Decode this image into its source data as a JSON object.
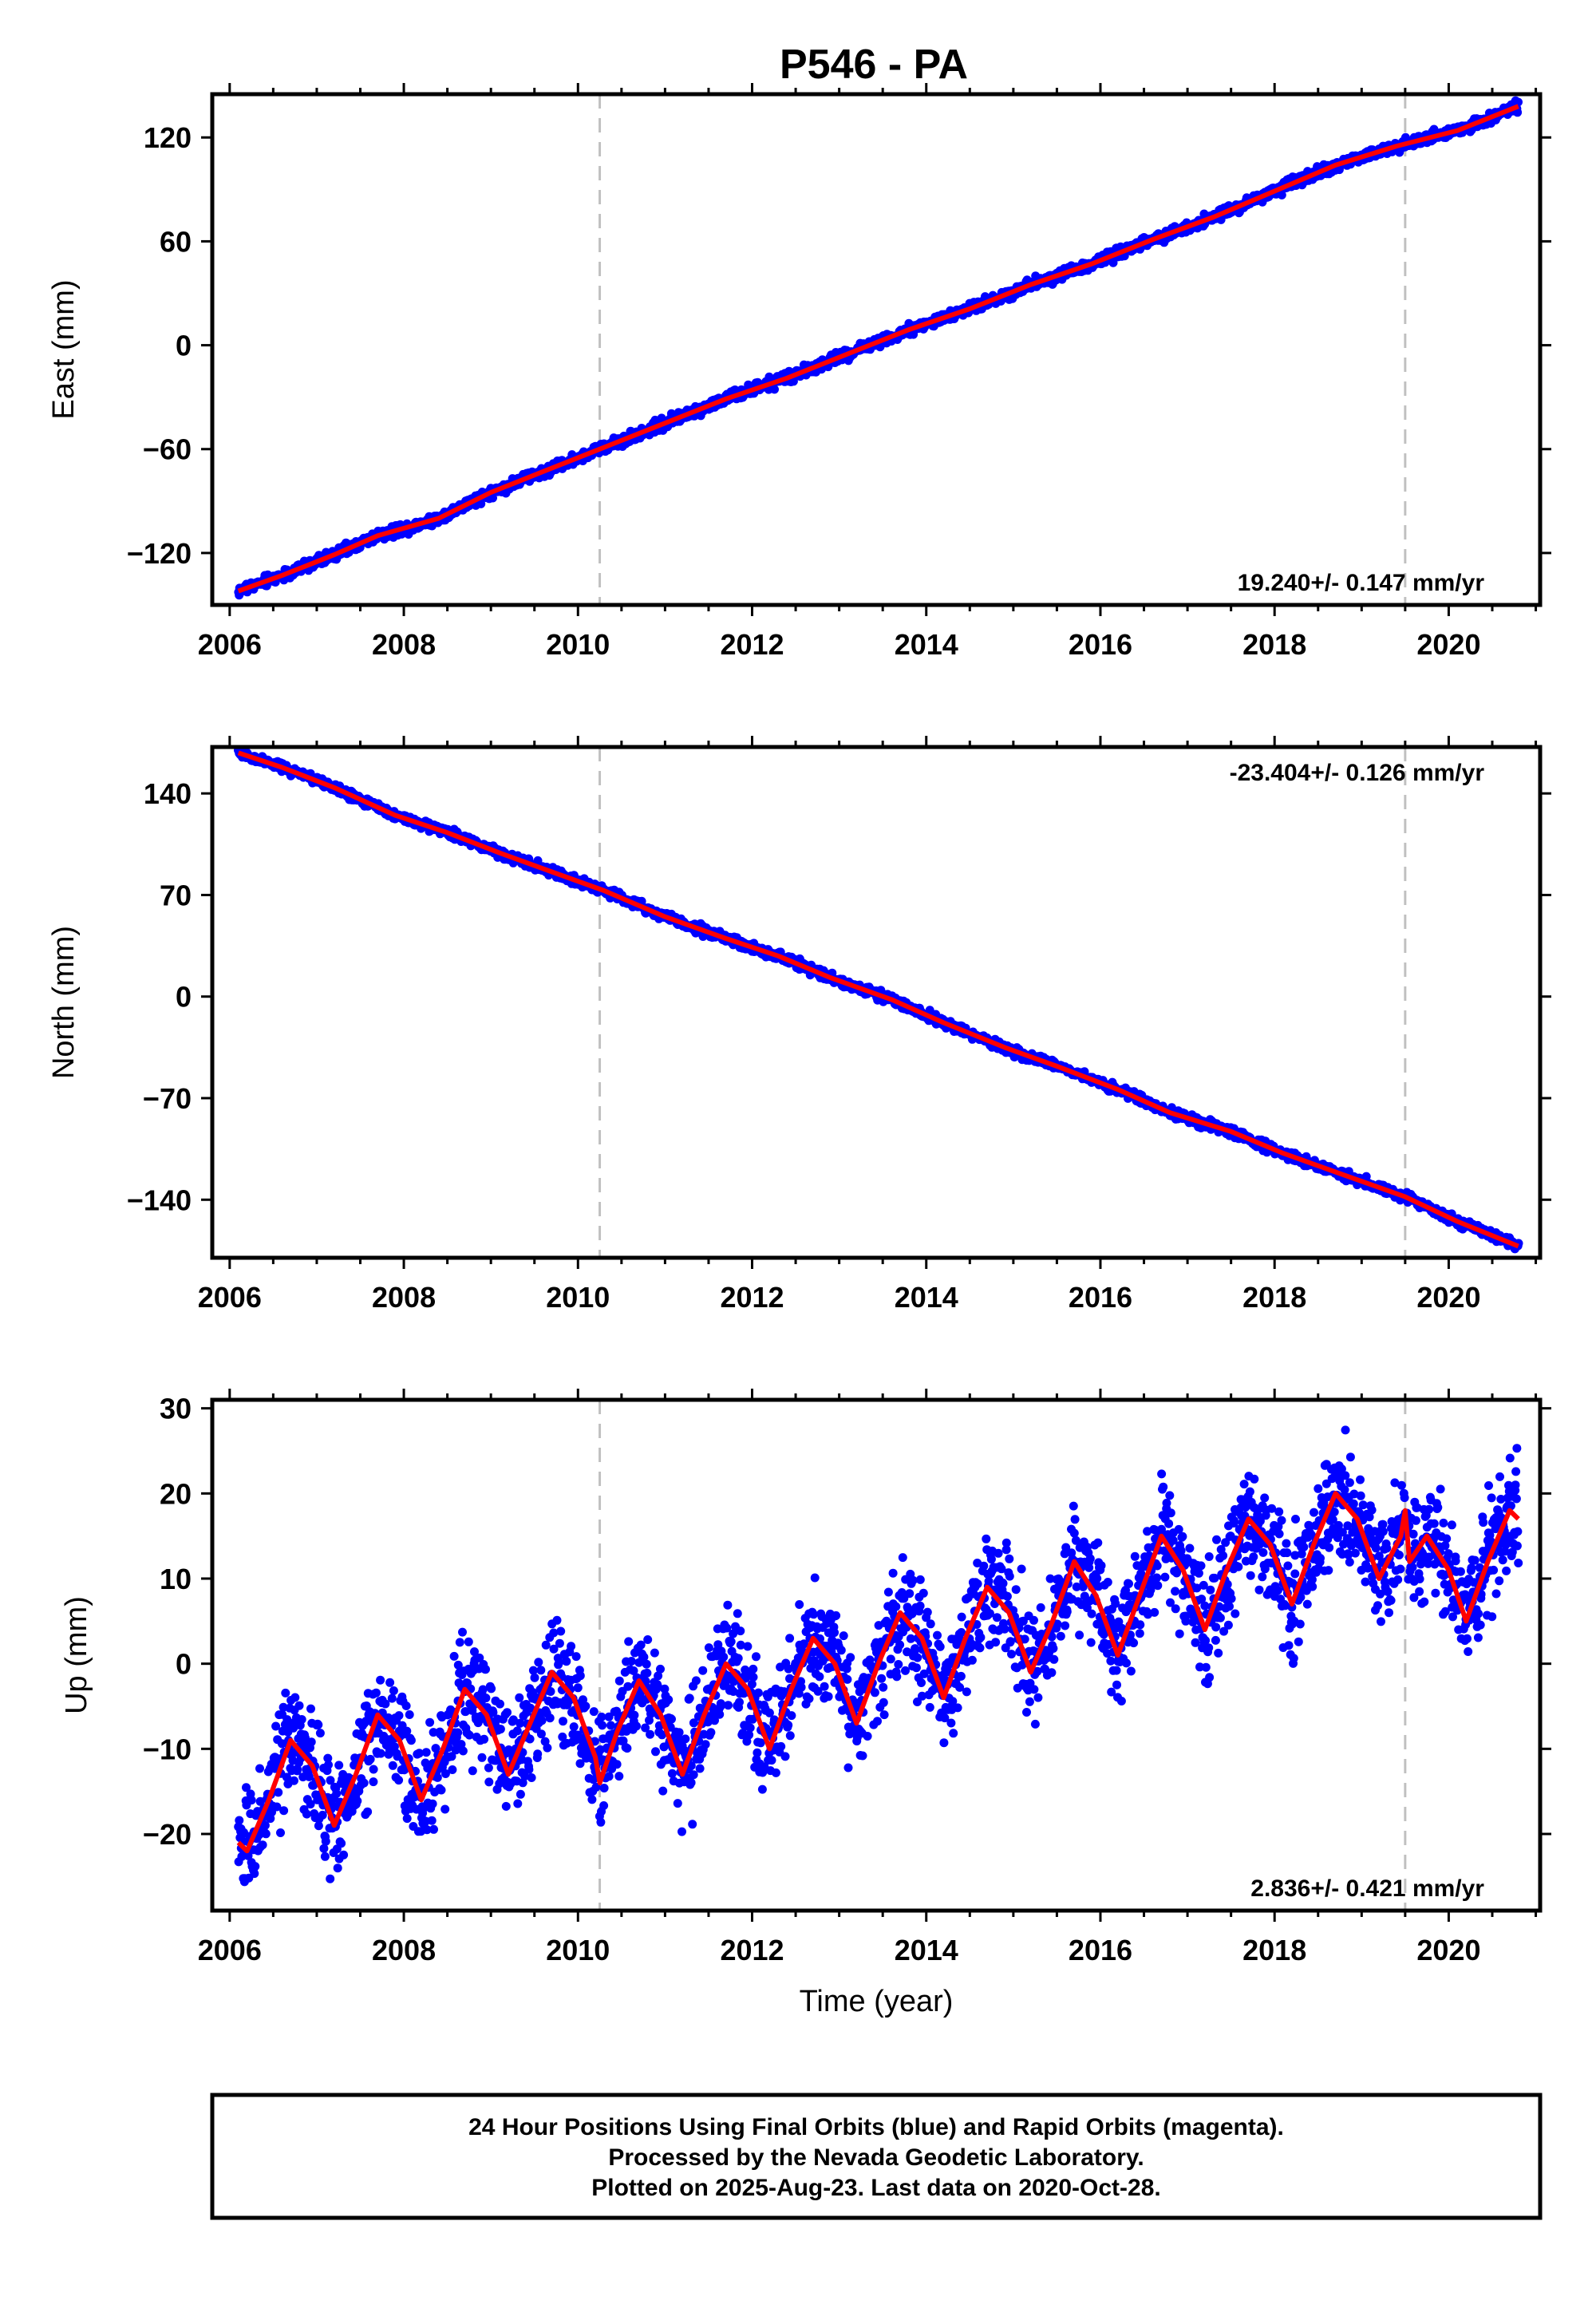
{
  "title": "P546 - PA",
  "chart_data": [
    {
      "type": "scatter",
      "panel": "east",
      "ylabel": "East (mm)",
      "xlabel": "",
      "xlim": [
        2005.8,
        2021.05
      ],
      "ylim": [
        -150,
        145
      ],
      "yticks": [
        -120,
        -60,
        0,
        60,
        120
      ],
      "xticks": [
        2006,
        2008,
        2010,
        2012,
        2014,
        2016,
        2018,
        2020
      ],
      "rate_label": "19.240+/- 0.147 mm/yr",
      "rate_position": "bottom-right",
      "grid": false,
      "steps": [
        2010.25,
        2019.5
      ],
      "series": [
        {
          "color": "#0000ff",
          "values": [
            [
              2006.1,
              -142
            ],
            [
              2006.6,
              -133
            ],
            [
              2007.2,
              -121
            ],
            [
              2007.7,
              -110
            ],
            [
              2008.4,
              -100
            ],
            [
              2009.0,
              -85
            ],
            [
              2009.6,
              -73
            ],
            [
              2010.2,
              -61
            ],
            [
              2011.0,
              -45
            ],
            [
              2011.7,
              -31
            ],
            [
              2012.4,
              -19
            ],
            [
              2013.1,
              -5
            ],
            [
              2013.8,
              9
            ],
            [
              2014.5,
              21
            ],
            [
              2015.2,
              35
            ],
            [
              2015.9,
              47
            ],
            [
              2016.6,
              61
            ],
            [
              2017.3,
              74
            ],
            [
              2018.0,
              89
            ],
            [
              2018.7,
              104
            ],
            [
              2019.4,
              115
            ],
            [
              2020.1,
              124
            ],
            [
              2020.8,
              138
            ]
          ]
        },
        {
          "color": "#ff0000",
          "values": [
            [
              2006.1,
              -142
            ],
            [
              2006.6,
              -133
            ],
            [
              2007.2,
              -121
            ],
            [
              2007.7,
              -110
            ],
            [
              2008.4,
              -100
            ],
            [
              2009.0,
              -85
            ],
            [
              2009.6,
              -73
            ],
            [
              2010.2,
              -61
            ],
            [
              2011.0,
              -45
            ],
            [
              2011.7,
              -31
            ],
            [
              2012.4,
              -19
            ],
            [
              2013.1,
              -5
            ],
            [
              2013.8,
              9
            ],
            [
              2014.5,
              21
            ],
            [
              2015.2,
              35
            ],
            [
              2015.9,
              47
            ],
            [
              2016.6,
              61
            ],
            [
              2017.3,
              74
            ],
            [
              2018.0,
              89
            ],
            [
              2018.7,
              104
            ],
            [
              2019.4,
              115
            ],
            [
              2020.1,
              124
            ],
            [
              2020.8,
              138
            ]
          ]
        }
      ]
    },
    {
      "type": "scatter",
      "panel": "north",
      "ylabel": "North (mm)",
      "xlabel": "",
      "xlim": [
        2005.8,
        2021.05
      ],
      "ylim": [
        -180,
        172
      ],
      "yticks": [
        -140,
        -70,
        0,
        70,
        140
      ],
      "xticks": [
        2006,
        2008,
        2010,
        2012,
        2014,
        2016,
        2018,
        2020
      ],
      "rate_label": "-23.404+/- 0.126 mm/yr",
      "rate_position": "top-right",
      "grid": false,
      "steps": [
        2010.25,
        2019.5
      ],
      "series": [
        {
          "color": "#0000ff",
          "values": [
            [
              2006.1,
              168
            ],
            [
              2006.6,
              158
            ],
            [
              2007.2,
              144
            ],
            [
              2007.9,
              125
            ],
            [
              2008.5,
              113
            ],
            [
              2009.1,
              99
            ],
            [
              2009.7,
              86
            ],
            [
              2010.3,
              73
            ],
            [
              2011.0,
              55
            ],
            [
              2011.7,
              40
            ],
            [
              2012.3,
              28
            ],
            [
              2012.9,
              13
            ],
            [
              2013.6,
              -2
            ],
            [
              2014.2,
              -18
            ],
            [
              2014.9,
              -35
            ],
            [
              2015.5,
              -48
            ],
            [
              2016.2,
              -64
            ],
            [
              2016.8,
              -80
            ],
            [
              2017.5,
              -93
            ],
            [
              2018.1,
              -108
            ],
            [
              2018.8,
              -123
            ],
            [
              2019.5,
              -138
            ],
            [
              2020.1,
              -155
            ],
            [
              2020.8,
              -172
            ]
          ]
        },
        {
          "color": "#ff0000",
          "values": [
            [
              2006.1,
              168
            ],
            [
              2006.6,
              158
            ],
            [
              2007.2,
              144
            ],
            [
              2007.9,
              125
            ],
            [
              2008.5,
              113
            ],
            [
              2009.1,
              99
            ],
            [
              2009.7,
              86
            ],
            [
              2010.3,
              73
            ],
            [
              2011.0,
              55
            ],
            [
              2011.7,
              40
            ],
            [
              2012.3,
              28
            ],
            [
              2012.9,
              13
            ],
            [
              2013.6,
              -2
            ],
            [
              2014.2,
              -18
            ],
            [
              2014.9,
              -35
            ],
            [
              2015.5,
              -48
            ],
            [
              2016.2,
              -64
            ],
            [
              2016.8,
              -80
            ],
            [
              2017.5,
              -93
            ],
            [
              2018.1,
              -108
            ],
            [
              2018.8,
              -123
            ],
            [
              2019.5,
              -138
            ],
            [
              2020.1,
              -155
            ],
            [
              2020.8,
              -172
            ]
          ]
        }
      ]
    },
    {
      "type": "scatter",
      "panel": "up",
      "ylabel": "Up (mm)",
      "xlabel": "Time (year)",
      "xlim": [
        2005.8,
        2021.05
      ],
      "ylim": [
        -29,
        31
      ],
      "yticks": [
        -20,
        -10,
        0,
        10,
        20,
        30
      ],
      "xticks": [
        2006,
        2008,
        2010,
        2012,
        2014,
        2016,
        2018,
        2020
      ],
      "rate_label": "2.836+/- 0.421 mm/yr",
      "rate_position": "bottom-right",
      "grid": false,
      "steps": [
        2010.25,
        2019.5
      ],
      "series": [
        {
          "color": "#0000ff",
          "values": [
            [
              2006.1,
              -21
            ],
            [
              2006.2,
              -22
            ],
            [
              2006.45,
              -16
            ],
            [
              2006.7,
              -9
            ],
            [
              2006.95,
              -12
            ],
            [
              2007.2,
              -19
            ],
            [
              2007.45,
              -13
            ],
            [
              2007.7,
              -6
            ],
            [
              2007.95,
              -9
            ],
            [
              2008.2,
              -16
            ],
            [
              2008.45,
              -10
            ],
            [
              2008.7,
              -3
            ],
            [
              2008.95,
              -6
            ],
            [
              2009.2,
              -13
            ],
            [
              2009.45,
              -7
            ],
            [
              2009.7,
              -1
            ],
            [
              2009.95,
              -4
            ],
            [
              2010.2,
              -11
            ],
            [
              2010.25,
              -14
            ],
            [
              2010.45,
              -8
            ],
            [
              2010.7,
              -2
            ],
            [
              2010.95,
              -6
            ],
            [
              2011.2,
              -13
            ],
            [
              2011.45,
              -6
            ],
            [
              2011.7,
              0
            ],
            [
              2011.95,
              -3
            ],
            [
              2012.2,
              -10
            ],
            [
              2012.45,
              -3
            ],
            [
              2012.7,
              3
            ],
            [
              2012.95,
              0
            ],
            [
              2013.2,
              -7
            ],
            [
              2013.45,
              0
            ],
            [
              2013.7,
              6
            ],
            [
              2013.95,
              3
            ],
            [
              2014.2,
              -4
            ],
            [
              2014.45,
              3
            ],
            [
              2014.7,
              9
            ],
            [
              2014.95,
              6
            ],
            [
              2015.2,
              -1
            ],
            [
              2015.45,
              5
            ],
            [
              2015.7,
              12
            ],
            [
              2015.95,
              8
            ],
            [
              2016.2,
              1
            ],
            [
              2016.45,
              8
            ],
            [
              2016.7,
              15
            ],
            [
              2016.95,
              11
            ],
            [
              2017.2,
              4
            ],
            [
              2017.45,
              11
            ],
            [
              2017.7,
              17
            ],
            [
              2017.95,
              14
            ],
            [
              2018.2,
              7
            ],
            [
              2018.45,
              14
            ],
            [
              2018.7,
              20
            ],
            [
              2018.95,
              17
            ],
            [
              2019.2,
              10
            ],
            [
              2019.45,
              15
            ],
            [
              2019.5,
              18
            ],
            [
              2019.55,
              12
            ],
            [
              2019.75,
              15
            ],
            [
              2020.0,
              11
            ],
            [
              2020.2,
              5
            ],
            [
              2020.45,
              12
            ],
            [
              2020.7,
              18
            ],
            [
              2020.8,
              17
            ]
          ]
        },
        {
          "color": "#ff0000",
          "values": [
            [
              2006.1,
              -21
            ],
            [
              2006.2,
              -22
            ],
            [
              2006.45,
              -16
            ],
            [
              2006.7,
              -9
            ],
            [
              2006.95,
              -12
            ],
            [
              2007.2,
              -19
            ],
            [
              2007.45,
              -13
            ],
            [
              2007.7,
              -6
            ],
            [
              2007.95,
              -9
            ],
            [
              2008.2,
              -16
            ],
            [
              2008.45,
              -10
            ],
            [
              2008.7,
              -3
            ],
            [
              2008.95,
              -6
            ],
            [
              2009.2,
              -13
            ],
            [
              2009.45,
              -7
            ],
            [
              2009.7,
              -1
            ],
            [
              2009.95,
              -4
            ],
            [
              2010.2,
              -11
            ],
            [
              2010.25,
              -14
            ],
            [
              2010.45,
              -8
            ],
            [
              2010.7,
              -2
            ],
            [
              2010.95,
              -6
            ],
            [
              2011.2,
              -13
            ],
            [
              2011.45,
              -6
            ],
            [
              2011.7,
              0
            ],
            [
              2011.95,
              -3
            ],
            [
              2012.2,
              -10
            ],
            [
              2012.45,
              -3
            ],
            [
              2012.7,
              3
            ],
            [
              2012.95,
              0
            ],
            [
              2013.2,
              -7
            ],
            [
              2013.45,
              0
            ],
            [
              2013.7,
              6
            ],
            [
              2013.95,
              3
            ],
            [
              2014.2,
              -4
            ],
            [
              2014.45,
              3
            ],
            [
              2014.7,
              9
            ],
            [
              2014.95,
              6
            ],
            [
              2015.2,
              -1
            ],
            [
              2015.45,
              5
            ],
            [
              2015.7,
              12
            ],
            [
              2015.95,
              8
            ],
            [
              2016.2,
              1
            ],
            [
              2016.45,
              8
            ],
            [
              2016.7,
              15
            ],
            [
              2016.95,
              11
            ],
            [
              2017.2,
              4
            ],
            [
              2017.45,
              11
            ],
            [
              2017.7,
              17
            ],
            [
              2017.95,
              14
            ],
            [
              2018.2,
              7
            ],
            [
              2018.45,
              14
            ],
            [
              2018.7,
              20
            ],
            [
              2018.95,
              17
            ],
            [
              2019.2,
              10
            ],
            [
              2019.45,
              15
            ],
            [
              2019.5,
              18
            ],
            [
              2019.55,
              12
            ],
            [
              2019.75,
              15
            ],
            [
              2020.0,
              11
            ],
            [
              2020.2,
              5
            ],
            [
              2020.45,
              12
            ],
            [
              2020.7,
              18
            ],
            [
              2020.8,
              17
            ]
          ]
        }
      ]
    }
  ],
  "caption": {
    "lines": [
      "24 Hour Positions Using Final Orbits (blue) and Rapid Orbits (magenta).",
      "Processed by the Nevada Geodetic Laboratory.",
      "Plotted on 2025-Aug-23. Last data on 2020-Oct-28."
    ]
  }
}
